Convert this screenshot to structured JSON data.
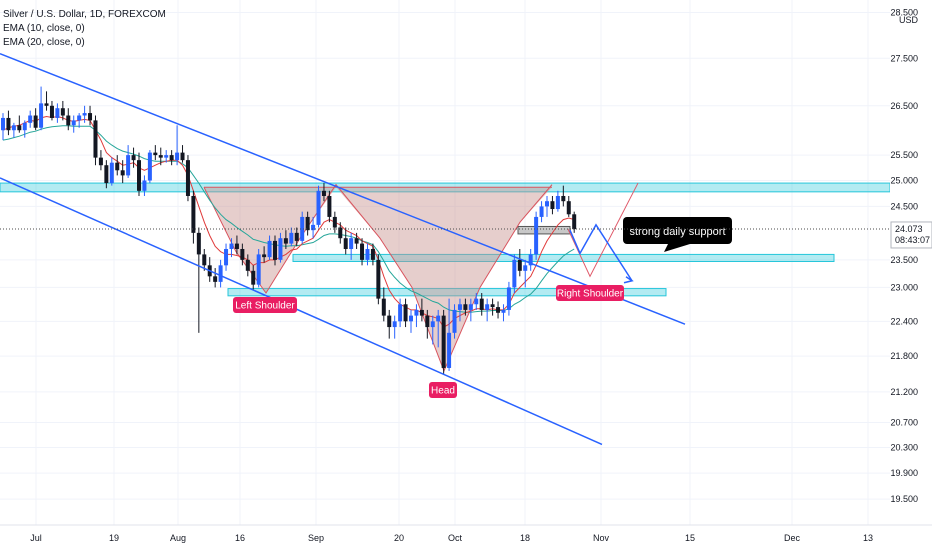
{
  "chart_data": {
    "type": "candlestick",
    "title": "Silver / U.S. Dollar, 1D, FOREXCOM",
    "indicators": [
      "EMA (10, close, 0)",
      "EMA (20, close, 0)"
    ],
    "currency": "USD",
    "price_axis": {
      "ticks": [
        "28.500",
        "27.500",
        "26.500",
        "25.500",
        "25.000",
        "24.500",
        "23.500",
        "23.000",
        "22.400",
        "21.800",
        "21.200",
        "20.700",
        "20.300",
        "19.900",
        "19.500"
      ],
      "range": [
        19.2,
        28.6
      ],
      "scale": "log"
    },
    "time_axis": {
      "ticks": [
        "Jul",
        "19",
        "Aug",
        "16",
        "Sep",
        "20",
        "Oct",
        "18",
        "Nov",
        "15",
        "Dec",
        "13"
      ]
    },
    "last_price": {
      "label": "24.073",
      "countdown": "08:43:07",
      "color": "#2962ff"
    },
    "colors": {
      "up": "#2962ff",
      "down": "#131722",
      "ema10": "#e03a3a",
      "ema20": "#26a69a",
      "channel": "#2962ff",
      "zone": "#26c6da",
      "pattern_fill": "#c8938f",
      "label_bg": "#e91e63",
      "callout_bg": "#000000"
    },
    "annotations": {
      "left_shoulder": "Left Shoulder",
      "head": "Head",
      "right_shoulder": "Right Shoulder",
      "support_note": "strong daily support"
    },
    "candles": [
      [
        26.0,
        26.35,
        25.8,
        26.25
      ],
      [
        26.25,
        26.4,
        25.9,
        26.0
      ],
      [
        26.0,
        26.15,
        25.85,
        26.1
      ],
      [
        26.1,
        26.3,
        25.95,
        26.0
      ],
      [
        26.0,
        26.2,
        25.85,
        26.15
      ],
      [
        26.15,
        26.4,
        26.05,
        26.3
      ],
      [
        26.3,
        26.45,
        26.0,
        26.05
      ],
      [
        26.05,
        26.9,
        26.0,
        26.55
      ],
      [
        26.55,
        26.8,
        26.4,
        26.5
      ],
      [
        26.5,
        26.6,
        26.2,
        26.25
      ],
      [
        26.25,
        26.55,
        26.15,
        26.45
      ],
      [
        26.45,
        26.6,
        26.2,
        26.3
      ],
      [
        26.3,
        26.45,
        26.0,
        26.1
      ],
      [
        26.1,
        26.3,
        25.95,
        26.2
      ],
      [
        26.2,
        26.35,
        26.05,
        26.3
      ],
      [
        26.3,
        26.5,
        26.15,
        26.35
      ],
      [
        26.35,
        26.5,
        26.1,
        26.2
      ],
      [
        26.2,
        26.3,
        25.3,
        25.45
      ],
      [
        25.45,
        25.6,
        25.2,
        25.3
      ],
      [
        25.3,
        25.4,
        24.85,
        24.95
      ],
      [
        24.95,
        25.45,
        24.9,
        25.35
      ],
      [
        25.35,
        25.5,
        25.1,
        25.2
      ],
      [
        25.2,
        25.4,
        24.95,
        25.1
      ],
      [
        25.1,
        25.7,
        25.05,
        25.5
      ],
      [
        25.5,
        25.65,
        25.25,
        25.4
      ],
      [
        25.4,
        25.55,
        24.7,
        24.8
      ],
      [
        24.8,
        25.1,
        24.7,
        25.0
      ],
      [
        25.0,
        25.6,
        24.95,
        25.55
      ],
      [
        25.55,
        25.7,
        25.4,
        25.5
      ],
      [
        25.5,
        25.65,
        25.3,
        25.45
      ],
      [
        25.45,
        25.6,
        25.35,
        25.5
      ],
      [
        25.5,
        25.6,
        25.3,
        25.4
      ],
      [
        25.4,
        26.1,
        25.3,
        25.55
      ],
      [
        25.55,
        25.7,
        25.35,
        25.4
      ],
      [
        25.4,
        25.5,
        24.6,
        24.7
      ],
      [
        24.7,
        24.8,
        23.8,
        24.0
      ],
      [
        24.0,
        24.1,
        22.2,
        23.6
      ],
      [
        23.6,
        23.7,
        23.3,
        23.4
      ],
      [
        23.4,
        23.55,
        23.1,
        23.2
      ],
      [
        23.2,
        23.35,
        23.0,
        23.1
      ],
      [
        23.1,
        23.5,
        23.0,
        23.4
      ],
      [
        23.4,
        23.8,
        23.3,
        23.7
      ],
      [
        23.7,
        23.9,
        23.55,
        23.8
      ],
      [
        23.8,
        23.95,
        23.6,
        23.7
      ],
      [
        23.7,
        23.8,
        23.4,
        23.5
      ],
      [
        23.5,
        23.6,
        23.2,
        23.3
      ],
      [
        23.3,
        23.4,
        22.95,
        23.05
      ],
      [
        23.05,
        23.7,
        23.0,
        23.6
      ],
      [
        23.6,
        23.75,
        23.45,
        23.55
      ],
      [
        23.55,
        23.95,
        23.5,
        23.85
      ],
      [
        23.85,
        23.95,
        23.4,
        23.5
      ],
      [
        23.5,
        24.0,
        23.45,
        23.9
      ],
      [
        23.9,
        24.05,
        23.7,
        23.8
      ],
      [
        23.8,
        24.1,
        23.75,
        24.0
      ],
      [
        24.0,
        24.1,
        23.75,
        23.85
      ],
      [
        23.85,
        24.4,
        23.8,
        24.3
      ],
      [
        24.3,
        24.4,
        23.95,
        24.05
      ],
      [
        24.05,
        24.3,
        23.9,
        24.15
      ],
      [
        24.15,
        24.9,
        24.1,
        24.8
      ],
      [
        24.8,
        24.95,
        24.6,
        24.7
      ],
      [
        24.7,
        24.8,
        24.2,
        24.3
      ],
      [
        24.3,
        24.4,
        24.0,
        24.1
      ],
      [
        24.1,
        24.2,
        23.8,
        23.9
      ],
      [
        23.9,
        24.1,
        23.6,
        23.7
      ],
      [
        23.7,
        24.0,
        23.5,
        23.9
      ],
      [
        23.9,
        24.0,
        23.7,
        23.8
      ],
      [
        23.8,
        23.9,
        23.4,
        23.5
      ],
      [
        23.5,
        23.8,
        23.4,
        23.7
      ],
      [
        23.7,
        23.8,
        23.4,
        23.5
      ],
      [
        23.5,
        23.6,
        22.7,
        22.8
      ],
      [
        22.8,
        23.0,
        22.4,
        22.5
      ],
      [
        22.5,
        22.6,
        22.1,
        22.3
      ],
      [
        22.3,
        22.5,
        22.1,
        22.4
      ],
      [
        22.4,
        22.8,
        22.3,
        22.7
      ],
      [
        22.7,
        22.8,
        22.3,
        22.4
      ],
      [
        22.4,
        22.6,
        22.2,
        22.5
      ],
      [
        22.5,
        22.7,
        22.3,
        22.6
      ],
      [
        22.6,
        22.8,
        22.4,
        22.5
      ],
      [
        22.5,
        22.6,
        22.1,
        22.3
      ],
      [
        22.3,
        22.5,
        22.0,
        22.4
      ],
      [
        22.4,
        22.6,
        21.95,
        22.5
      ],
      [
        22.5,
        22.6,
        21.5,
        21.6
      ],
      [
        21.6,
        22.8,
        21.55,
        22.2
      ],
      [
        22.2,
        22.7,
        22.1,
        22.6
      ],
      [
        22.6,
        22.8,
        22.4,
        22.7
      ],
      [
        22.7,
        22.8,
        22.5,
        22.6
      ],
      [
        22.6,
        22.8,
        22.4,
        22.7
      ],
      [
        22.7,
        22.9,
        22.6,
        22.8
      ],
      [
        22.8,
        22.9,
        22.5,
        22.6
      ],
      [
        22.6,
        22.8,
        22.4,
        22.7
      ],
      [
        22.7,
        22.8,
        22.5,
        22.65
      ],
      [
        22.65,
        22.75,
        22.45,
        22.55
      ],
      [
        22.55,
        22.7,
        22.4,
        22.6
      ],
      [
        22.6,
        23.1,
        22.5,
        23.0
      ],
      [
        23.0,
        23.6,
        22.9,
        23.5
      ],
      [
        23.5,
        23.7,
        23.2,
        23.3
      ],
      [
        23.3,
        23.5,
        23.0,
        23.4
      ],
      [
        23.4,
        23.7,
        23.3,
        23.6
      ],
      [
        23.6,
        24.4,
        23.5,
        24.3
      ],
      [
        24.3,
        24.6,
        24.2,
        24.5
      ],
      [
        24.5,
        24.7,
        24.3,
        24.6
      ],
      [
        24.6,
        24.7,
        24.35,
        24.45
      ],
      [
        24.45,
        24.8,
        24.4,
        24.7
      ],
      [
        24.7,
        24.9,
        24.5,
        24.6
      ],
      [
        24.6,
        24.7,
        24.3,
        24.35
      ],
      [
        24.35,
        24.4,
        24.0,
        24.07
      ]
    ],
    "ema10": [
      26.0,
      26.05,
      26.08,
      26.1,
      26.15,
      26.2,
      26.18,
      26.25,
      26.28,
      26.26,
      26.28,
      26.25,
      26.2,
      26.18,
      26.2,
      26.22,
      26.2,
      26.0,
      25.8,
      25.55,
      25.45,
      25.38,
      25.3,
      25.32,
      25.35,
      25.25,
      25.2,
      25.25,
      25.3,
      25.35,
      25.38,
      25.4,
      25.4,
      25.3,
      25.1,
      24.8,
      24.5,
      24.2,
      23.95,
      23.75,
      23.65,
      23.6,
      23.6,
      23.58,
      23.55,
      23.5,
      23.4,
      23.45,
      23.45,
      23.5,
      23.5,
      23.55,
      23.6,
      23.68,
      23.7,
      23.8,
      23.85,
      23.9,
      24.05,
      24.2,
      24.25,
      24.2,
      24.15,
      24.05,
      24.0,
      23.95,
      23.85,
      23.8,
      23.75,
      23.5,
      23.2,
      22.95,
      22.8,
      22.7,
      22.65,
      22.6,
      22.6,
      22.55,
      22.5,
      22.48,
      22.45,
      22.3,
      22.35,
      22.45,
      22.5,
      22.55,
      22.58,
      22.62,
      22.62,
      22.6,
      22.62,
      22.6,
      22.6,
      22.7,
      22.9,
      23.0,
      23.1,
      23.2,
      23.4,
      23.65,
      23.85,
      24.0,
      24.15,
      24.25,
      24.28,
      24.25
    ],
    "ema20": [
      25.8,
      25.82,
      25.85,
      25.88,
      25.92,
      25.96,
      25.98,
      26.02,
      26.05,
      26.07,
      26.08,
      26.09,
      26.09,
      26.08,
      26.08,
      26.08,
      26.08,
      26.0,
      25.9,
      25.78,
      25.7,
      25.63,
      25.58,
      25.55,
      25.52,
      25.48,
      25.43,
      25.4,
      25.38,
      25.38,
      25.38,
      25.38,
      25.38,
      25.33,
      25.25,
      25.1,
      24.95,
      24.78,
      24.62,
      24.47,
      24.35,
      24.25,
      24.18,
      24.1,
      24.03,
      23.96,
      23.88,
      23.85,
      23.82,
      23.8,
      23.78,
      23.76,
      23.75,
      23.76,
      23.76,
      23.78,
      23.8,
      23.82,
      23.88,
      23.95,
      23.98,
      23.98,
      23.97,
      23.95,
      23.93,
      23.9,
      23.85,
      23.82,
      23.78,
      23.65,
      23.48,
      23.3,
      23.18,
      23.08,
      23.0,
      22.94,
      22.9,
      22.85,
      22.8,
      22.75,
      22.72,
      22.65,
      22.6,
      22.58,
      22.57,
      22.56,
      22.56,
      22.57,
      22.58,
      22.58,
      22.59,
      22.59,
      22.59,
      22.62,
      22.7,
      22.75,
      22.82,
      22.88,
      22.98,
      23.12,
      23.25,
      23.36,
      23.47,
      23.57,
      23.64,
      23.7
    ]
  }
}
